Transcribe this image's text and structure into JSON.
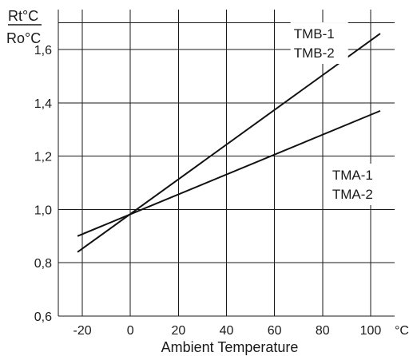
{
  "chart_data": {
    "type": "line",
    "ylabel": {
      "numerator": "Rt°C",
      "denominator": "Ro°C"
    },
    "xlabel": "Ambient Temperature",
    "x_unit": "°C",
    "xlim": [
      -30,
      110
    ],
    "ylim": [
      0.6,
      1.75
    ],
    "x_ticks": [
      -20,
      0,
      20,
      40,
      60,
      80,
      100
    ],
    "x_tick_labels": [
      "-20",
      "0",
      "20",
      "40",
      "60",
      "80",
      "100"
    ],
    "y_ticks": [
      0.6,
      0.8,
      1.0,
      1.2,
      1.4,
      1.6
    ],
    "y_tick_labels": [
      "0,6",
      "0,8",
      "1,0",
      "1,2",
      "1,4",
      "1,6"
    ],
    "grid": true,
    "series": [
      {
        "name": "TMB-1 TMB-2",
        "x": [
          -22,
          104
        ],
        "y": [
          0.84,
          1.66
        ]
      },
      {
        "name": "TMA-1 TMA-2",
        "x": [
          -22,
          104
        ],
        "y": [
          0.9,
          1.37
        ]
      }
    ],
    "annotations": [
      {
        "series": 0,
        "lines": [
          "TMB-1",
          "TMB-2"
        ],
        "anchor": [
          68,
          1.69
        ]
      },
      {
        "series": 1,
        "lines": [
          "TMA-1",
          "TMA-2"
        ],
        "anchor": [
          84,
          1.16
        ]
      }
    ]
  }
}
